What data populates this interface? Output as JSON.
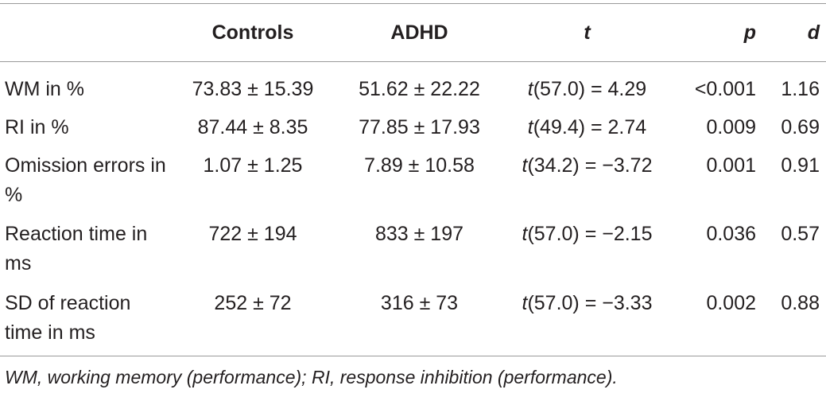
{
  "table": {
    "headers": {
      "label": "",
      "controls": "Controls",
      "adhd": "ADHD",
      "t": "t",
      "p": "p",
      "d": "d"
    },
    "rows": [
      {
        "label": "WM in %",
        "controls": "73.83 ± 15.39",
        "adhd": "51.62 ± 22.22",
        "t_sym": "t",
        "t_rest": "(57.0) = 4.29",
        "p": "<0.001",
        "d": "1.16"
      },
      {
        "label": "RI in %",
        "controls": "87.44 ± 8.35",
        "adhd": "77.85 ± 17.93",
        "t_sym": "t",
        "t_rest": "(49.4) = 2.74",
        "p": "0.009",
        "d": "0.69"
      },
      {
        "label": "Omission errors in %",
        "controls": "1.07 ± 1.25",
        "adhd": "7.89 ± 10.58",
        "t_sym": "t",
        "t_rest": "(34.2) = −3.72",
        "p": "0.001",
        "d": "0.91"
      },
      {
        "label": "Reaction time in ms",
        "controls": "722 ± 194",
        "adhd": "833 ± 197",
        "t_sym": "t",
        "t_rest": "(57.0) = −2.15",
        "p": "0.036",
        "d": "0.57"
      },
      {
        "label": "SD of reaction time in ms",
        "controls": "252 ± 72",
        "adhd": "316 ± 73",
        "t_sym": "t",
        "t_rest": "(57.0) = −3.33",
        "p": "0.002",
        "d": "0.88"
      }
    ],
    "footnote": "WM, working memory (performance); RI, response inhibition (performance)."
  }
}
